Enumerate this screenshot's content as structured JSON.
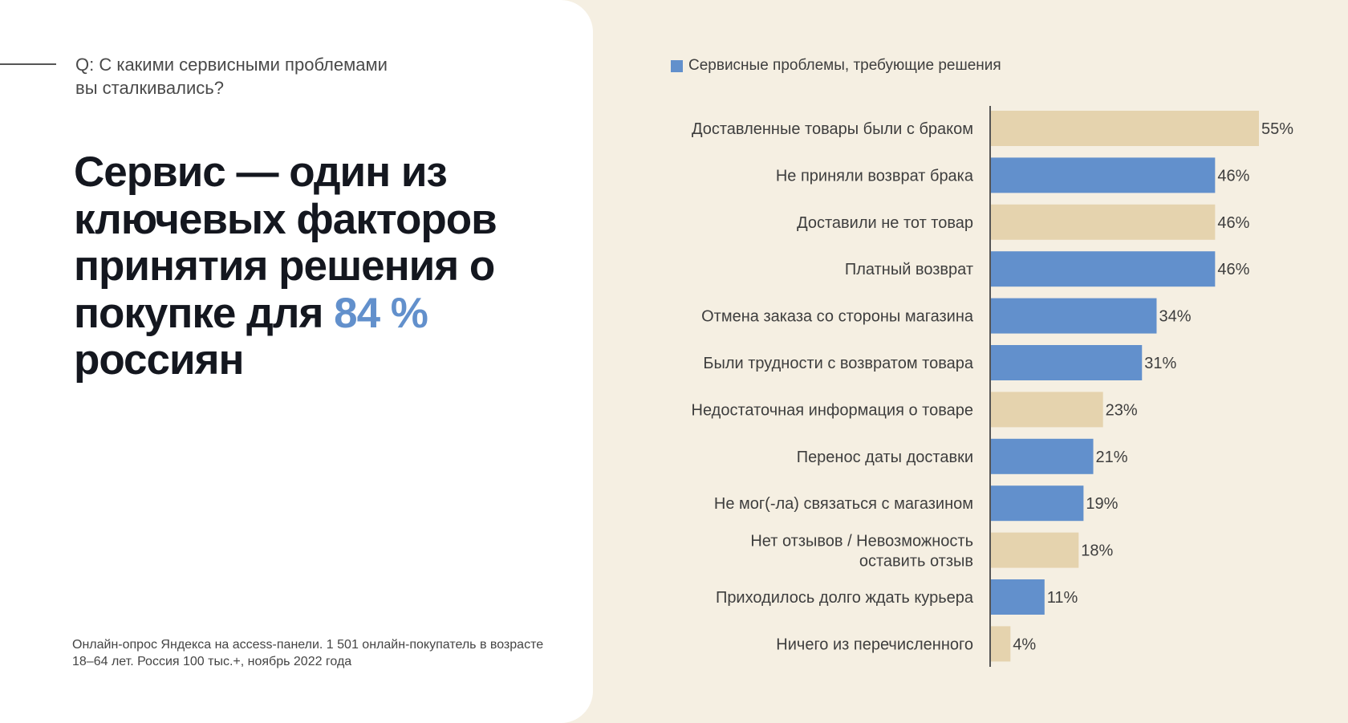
{
  "question": "Q: С какими сервисными проблемами вы сталкивались?",
  "headline": {
    "before": "Сервис — один из ключевых факторов принятия решения о покупке для ",
    "accent": "84 %",
    "after": " россиян"
  },
  "footnote": "Онлайн-опрос Яндекса на access-панели. 1 501 онлайн-покупатель в возрасте 18–64 лет. Россия 100 тыс.+, ноябрь 2022 года",
  "colors": {
    "highlight": "#6290CC",
    "other": "#E5D3AE",
    "background": "#F5EFE2"
  },
  "chart_data": {
    "type": "bar",
    "orientation": "horizontal",
    "legend": {
      "label": "Сервисные проблемы, требующие решения",
      "color": "#6290CC",
      "placement": "top-left"
    },
    "unit": "%",
    "xlim": [
      0,
      55
    ],
    "grid": false,
    "categories": [
      "Доставленные товары были с браком",
      "Не приняли возврат брака",
      "Доставили не тот товар",
      "Платный возврат",
      "Отмена заказа со стороны магазина",
      "Были трудности с возвратом товара",
      "Недостаточная информация о товаре",
      "Перенос даты доставки",
      "Не мог(-ла) связаться с магазином",
      "Нет отзывов / Невозможность\nоставить отзыв",
      "Приходилось долго ждать курьера",
      "Ничего из перечисленного"
    ],
    "values": [
      55,
      46,
      46,
      46,
      34,
      31,
      23,
      21,
      19,
      18,
      11,
      4
    ],
    "value_labels": [
      "55%",
      "46%",
      "46%",
      "46%",
      "34%",
      "31%",
      "23%",
      "21%",
      "19%",
      "18%",
      "11%",
      "4%"
    ],
    "highlighted": [
      false,
      true,
      false,
      true,
      true,
      true,
      false,
      true,
      true,
      false,
      true,
      false
    ]
  }
}
